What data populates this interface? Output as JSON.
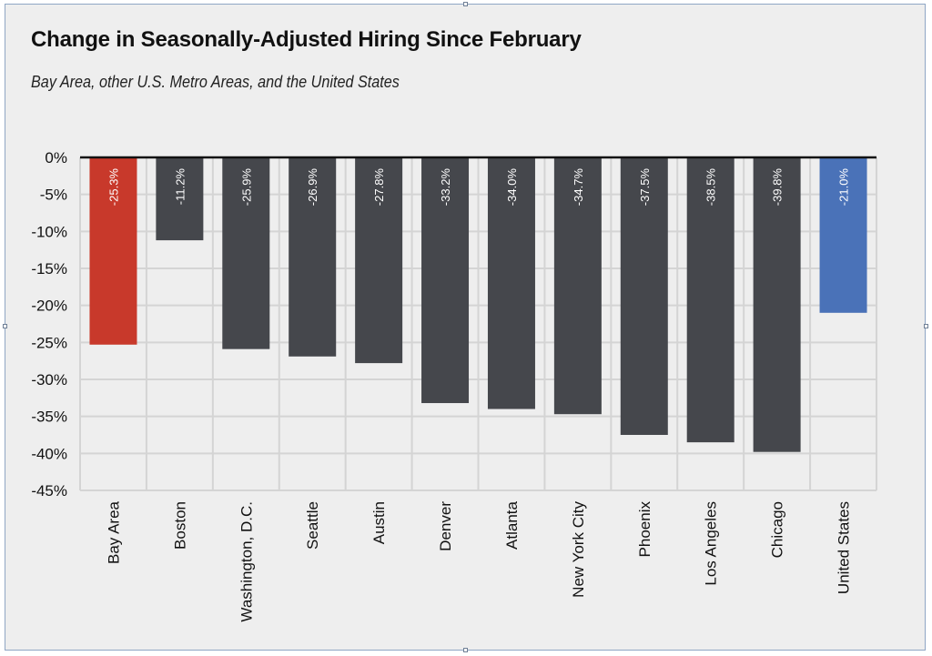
{
  "title": "Change in Seasonally-Adjusted Hiring Since February",
  "subtitle": "Bay Area, other U.S. Metro Areas, and the United States",
  "colors": {
    "highlight": "#c8392b",
    "default": "#45474c",
    "national": "#4a72b8",
    "grid": "#d4d4d4",
    "background": "#eeeeee"
  },
  "chart_data": {
    "type": "bar",
    "title": "Change in Seasonally-Adjusted Hiring Since February",
    "subtitle": "Bay Area, other U.S. Metro Areas, and the United States",
    "xlabel": "",
    "ylabel": "",
    "ylim": [
      -45,
      0
    ],
    "yticks": [
      0,
      -5,
      -10,
      -15,
      -20,
      -25,
      -30,
      -35,
      -40,
      -45
    ],
    "ytick_labels": [
      "0%",
      "-5%",
      "-10%",
      "-15%",
      "-20%",
      "-25%",
      "-30%",
      "-35%",
      "-40%",
      "-45%"
    ],
    "grid": true,
    "categories": [
      "Bay Area",
      "Boston",
      "Washington, D.C.",
      "Seattle",
      "Austin",
      "Denver",
      "Atlanta",
      "New York City",
      "Phoenix",
      "Los Angeles",
      "Chicago",
      "United States"
    ],
    "values": [
      -25.3,
      -11.2,
      -25.9,
      -26.9,
      -27.8,
      -33.2,
      -34.0,
      -34.7,
      -37.5,
      -38.5,
      -39.8,
      -21.0
    ],
    "data_labels": [
      "-25.3%",
      "-11.2%",
      "-25.9%",
      "-26.9%",
      "-27.8%",
      "-33.2%",
      "-34.0%",
      "-34.7%",
      "-37.5%",
      "-38.5%",
      "-39.8%",
      "-21.0%"
    ],
    "bar_colors": [
      "#c8392b",
      "#45474c",
      "#45474c",
      "#45474c",
      "#45474c",
      "#45474c",
      "#45474c",
      "#45474c",
      "#45474c",
      "#45474c",
      "#45474c",
      "#4a72b8"
    ]
  }
}
